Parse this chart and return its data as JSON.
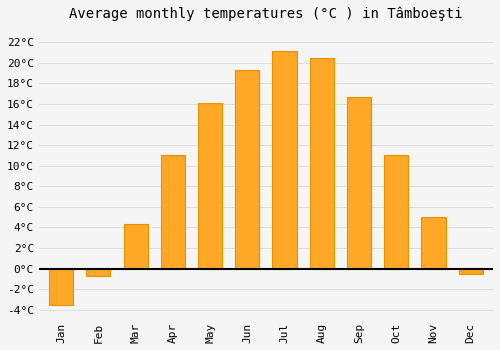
{
  "title": "Average monthly temperatures (°C ) in Tâmboeşti",
  "months": [
    "Jan",
    "Feb",
    "Mar",
    "Apr",
    "May",
    "Jun",
    "Jul",
    "Aug",
    "Sep",
    "Oct",
    "Nov",
    "Dec"
  ],
  "values": [
    -3.5,
    -0.7,
    4.3,
    11.0,
    16.1,
    19.3,
    21.1,
    20.5,
    16.7,
    11.0,
    5.0,
    -0.5
  ],
  "bar_color": "#FFA726",
  "bar_edge_color": "#E59400",
  "background_color": "#F5F5F5",
  "grid_color": "#DDDDDD",
  "yticks": [
    -4,
    -2,
    0,
    2,
    4,
    6,
    8,
    10,
    12,
    14,
    16,
    18,
    20,
    22
  ],
  "ylim": [
    -4.8,
    23.5
  ],
  "title_fontsize": 10,
  "tick_fontsize": 8,
  "bar_width": 0.65
}
